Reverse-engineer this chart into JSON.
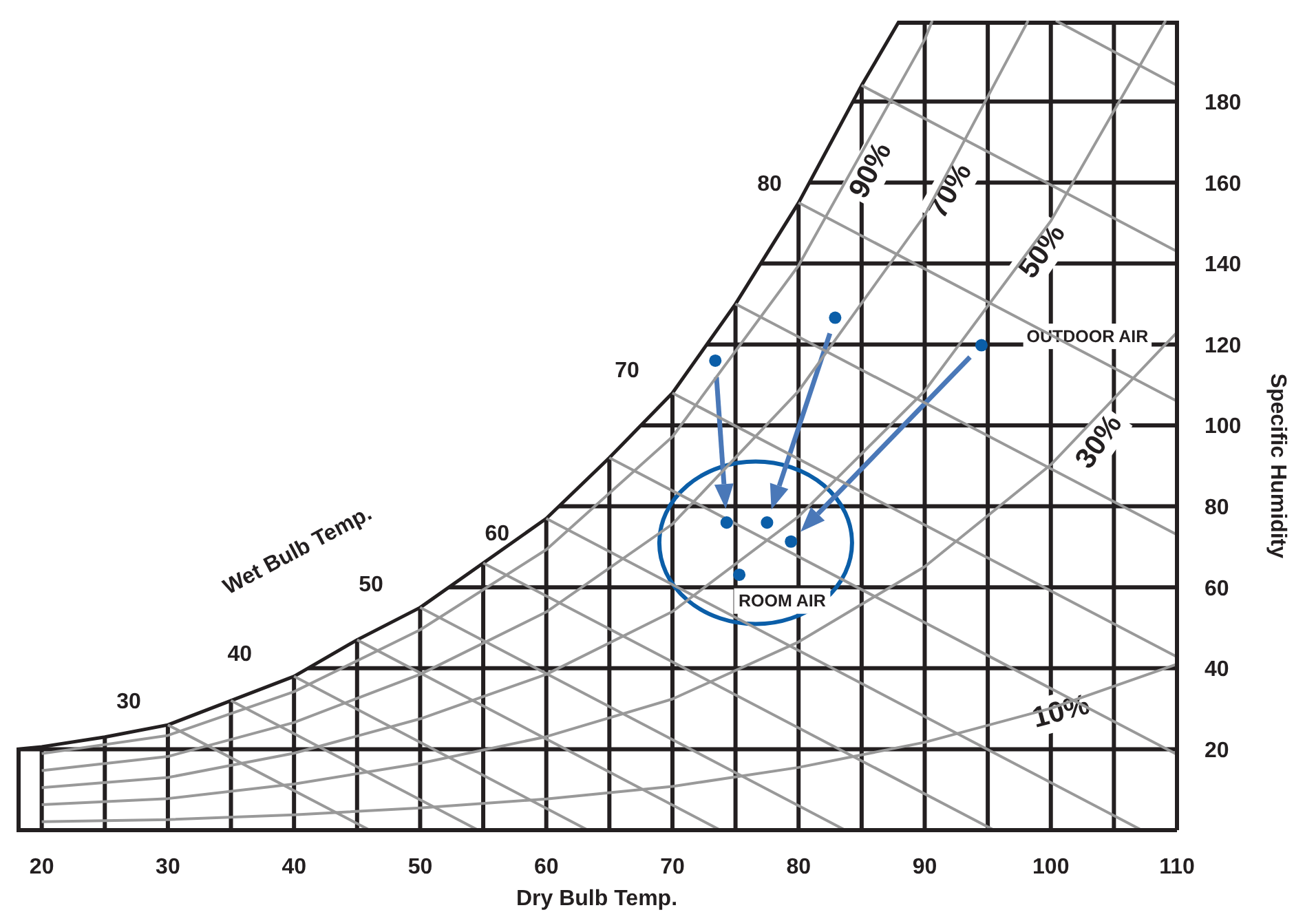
{
  "chart_data": {
    "type": "line",
    "xlabel": "Dry Bulb Temp.",
    "ylabel": "Specific Humidity",
    "xlim": [
      18,
      110
    ],
    "ylim": [
      0,
      200
    ],
    "xticks": [
      20,
      {
        "value": 25,
        "label": null
      },
      30,
      {
        "value": 35,
        "label": null
      },
      40,
      {
        "value": 45,
        "label": null
      },
      50,
      {
        "value": 55,
        "label": null
      },
      60,
      {
        "value": 65,
        "label": null
      },
      70,
      {
        "value": 75,
        "label": null
      },
      80,
      {
        "value": 85,
        "label": null
      },
      90,
      {
        "value": 95,
        "label": null
      },
      100,
      {
        "value": 105,
        "label": null
      },
      110
    ],
    "yticks": [
      20,
      40,
      60,
      80,
      100,
      120,
      140,
      160,
      180
    ],
    "grid": true,
    "marker": "none",
    "line_style": "solid",
    "series": [
      {
        "color": "#231f20",
        "x": [
          18,
          20,
          25,
          30,
          35,
          40,
          45,
          50,
          55,
          60,
          65,
          70,
          75,
          80,
          85,
          88
        ],
        "values": [
          20,
          20.6,
          23,
          26,
          32,
          38,
          47,
          55,
          66,
          77,
          92,
          108,
          130,
          155,
          184,
          200
        ]
      },
      {
        "color": "#999999",
        "x": [
          20,
          30,
          40,
          50,
          60,
          70,
          80,
          90,
          90.6
        ],
        "values": [
          18.9,
          23.4,
          34.2,
          49.5,
          69.3,
          97.2,
          139.5,
          195.3,
          200
        ]
      },
      {
        "color": "#999999",
        "x": [
          20,
          30,
          40,
          50,
          60,
          70,
          80,
          90,
          98.2
        ],
        "values": [
          14.7,
          18.2,
          26.6,
          38.5,
          53.9,
          75.6,
          108.5,
          151.9,
          200
        ]
      },
      {
        "color": "#999999",
        "x": [
          20,
          30,
          40,
          50,
          60,
          70,
          80,
          90,
          100,
          109.1
        ],
        "values": [
          10.5,
          13,
          19,
          27.5,
          38.5,
          54,
          77.5,
          108.5,
          150.5,
          200
        ]
      },
      {
        "color": "#999999",
        "x": [
          20,
          30,
          40,
          50,
          60,
          70,
          80,
          90,
          100,
          110
        ],
        "values": [
          6.3,
          7.8,
          11.4,
          16.5,
          23.1,
          32.4,
          46.5,
          65.1,
          90.3,
          123
        ]
      },
      {
        "color": "#999999",
        "x": [
          20,
          30,
          40,
          50,
          60,
          70,
          80,
          90,
          100,
          110
        ],
        "values": [
          2.1,
          2.6,
          3.8,
          5.5,
          7.7,
          10.8,
          15.5,
          21.7,
          30.1,
          41
        ]
      },
      {
        "color": "#999999",
        "x": [
          30,
          46
        ],
        "values": [
          26,
          0
        ]
      },
      {
        "color": "#999999",
        "x": [
          35,
          54.6
        ],
        "values": [
          32,
          0
        ]
      },
      {
        "color": "#999999",
        "x": [
          40,
          63.3
        ],
        "values": [
          38,
          0
        ]
      },
      {
        "color": "#999999",
        "x": [
          45,
          73.8
        ],
        "values": [
          47,
          0
        ]
      },
      {
        "color": "#999999",
        "x": [
          50,
          83.7
        ],
        "values": [
          55,
          0
        ]
      },
      {
        "color": "#999999",
        "x": [
          55,
          95.5
        ],
        "values": [
          66,
          0
        ]
      },
      {
        "color": "#999999",
        "x": [
          60,
          107.2
        ],
        "values": [
          77,
          0
        ]
      },
      {
        "color": "#999999",
        "x": [
          65,
          110
        ],
        "values": [
          92,
          18.7
        ]
      },
      {
        "color": "#999999",
        "x": [
          70,
          110
        ],
        "values": [
          108,
          42.8
        ]
      },
      {
        "color": "#999999",
        "x": [
          75,
          110
        ],
        "values": [
          130,
          73
        ]
      },
      {
        "color": "#999999",
        "x": [
          80,
          110
        ],
        "values": [
          155,
          106
        ]
      },
      {
        "color": "#999999",
        "x": [
          85,
          110
        ],
        "values": [
          184,
          143
        ]
      },
      {
        "color": "#999999",
        "x": [
          100.4,
          110
        ],
        "values": [
          200,
          184
        ]
      },
      {
        "type": "scatter",
        "marker": "circle",
        "color": "#0b5ea8",
        "x": [
          73.4,
          82.9,
          94.5,
          74.3,
          77.5,
          79.4,
          75.3
        ],
        "values": [
          116,
          126.6,
          119.8,
          76,
          76,
          71.3,
          63.1
        ]
      }
    ],
    "annotations": [
      "Wet Bulb Temp.",
      "30",
      "40",
      "50",
      "60",
      "70",
      "80",
      "90%",
      "70%",
      "50%",
      "30%",
      "10%",
      "OUTDOOR AIR",
      "ROOM AIR"
    ]
  }
}
